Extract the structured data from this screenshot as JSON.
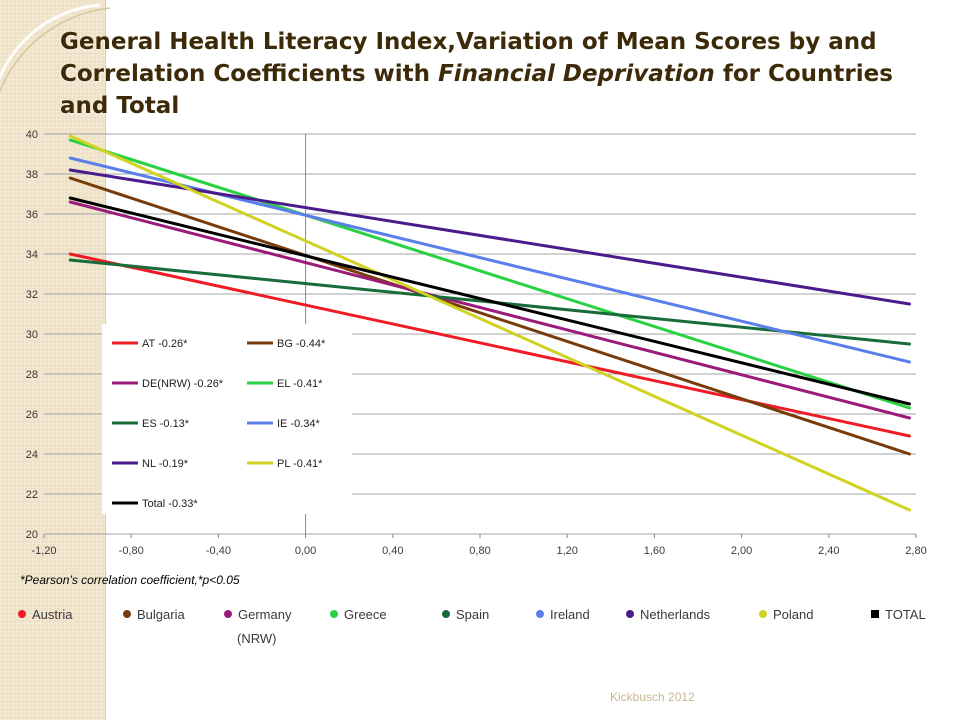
{
  "title": {
    "part1": "General Health Literacy Index,Variation of Mean Scores by and Correlation Coefficients with ",
    "emphasis": "Financial Deprivation",
    "part2": " for Countries and Total"
  },
  "chart_data": {
    "type": "line",
    "xlim": [
      -1.2,
      2.8
    ],
    "ylim": [
      20,
      40
    ],
    "x_ticks": [
      "-1,20",
      "-0,80",
      "-0,40",
      "0,00",
      "0,40",
      "0,80",
      "1,20",
      "1,60",
      "2,00",
      "2,40",
      "2,80"
    ],
    "y_ticks": [
      "20",
      "22",
      "24",
      "26",
      "28",
      "30",
      "32",
      "34",
      "36",
      "38",
      "40"
    ],
    "x_tick_values": [
      -1.2,
      -0.8,
      -0.4,
      0,
      0.4,
      0.8,
      1.2,
      1.6,
      2.0,
      2.4,
      2.8
    ],
    "y_tick_values": [
      20,
      22,
      24,
      26,
      28,
      30,
      32,
      34,
      36,
      38,
      40
    ],
    "grid": "horizontal",
    "series": [
      {
        "name": "AT -0.26*",
        "color": "#ee1c25",
        "x": [
          -1.08,
          2.77
        ],
        "y": [
          34.0,
          24.9
        ]
      },
      {
        "name": "BG -0.44*",
        "color": "#7a3b0a",
        "x": [
          -1.08,
          2.77
        ],
        "y": [
          37.8,
          24.0
        ]
      },
      {
        "name": "DE(NRW) -0.26*",
        "color": "#9b1b7a",
        "x": [
          -1.08,
          2.77
        ],
        "y": [
          36.6,
          25.8
        ]
      },
      {
        "name": "EL -0.41*",
        "color": "#2ad143",
        "x": [
          -1.08,
          2.77
        ],
        "y": [
          39.7,
          26.3
        ]
      },
      {
        "name": "ES -0.13*",
        "color": "#1a6b3a",
        "x": [
          -1.08,
          2.77
        ],
        "y": [
          33.7,
          29.5
        ]
      },
      {
        "name": "IE -0.34*",
        "color": "#5b7fea",
        "x": [
          -1.08,
          2.77
        ],
        "y": [
          38.8,
          28.6
        ]
      },
      {
        "name": "NL -0.19*",
        "color": "#4a1b8c",
        "x": [
          -1.08,
          2.77
        ],
        "y": [
          38.2,
          31.5
        ]
      },
      {
        "name": "PL -0.41*",
        "color": "#cfd321",
        "x": [
          -1.08,
          2.77
        ],
        "y": [
          39.9,
          21.2
        ]
      },
      {
        "name": "Total -0.33*",
        "color": "#000000",
        "x": [
          -1.08,
          2.77
        ],
        "y": [
          36.8,
          26.5
        ]
      }
    ]
  },
  "footnote": "*Pearson’s correlation coefficient,*p<0.05",
  "country_legend": [
    {
      "label": "Austria",
      "color": "#ee1c25"
    },
    {
      "label": "Bulgaria",
      "color": "#7a3b0a"
    },
    {
      "label": "Germany",
      "color": "#9b1b7a"
    },
    {
      "label": "Greece",
      "color": "#2ad143"
    },
    {
      "label": "Spain",
      "color": "#1a6b3a"
    },
    {
      "label": "Ireland",
      "color": "#5b7fea"
    },
    {
      "label": "Netherlands",
      "color": "#4a1b8c"
    },
    {
      "label": "Poland",
      "color": "#cfd321"
    },
    {
      "label": "TOTAL",
      "color": "#000000"
    }
  ],
  "country_legend_sub": "(NRW)",
  "credit": "Kickbusch 2012"
}
